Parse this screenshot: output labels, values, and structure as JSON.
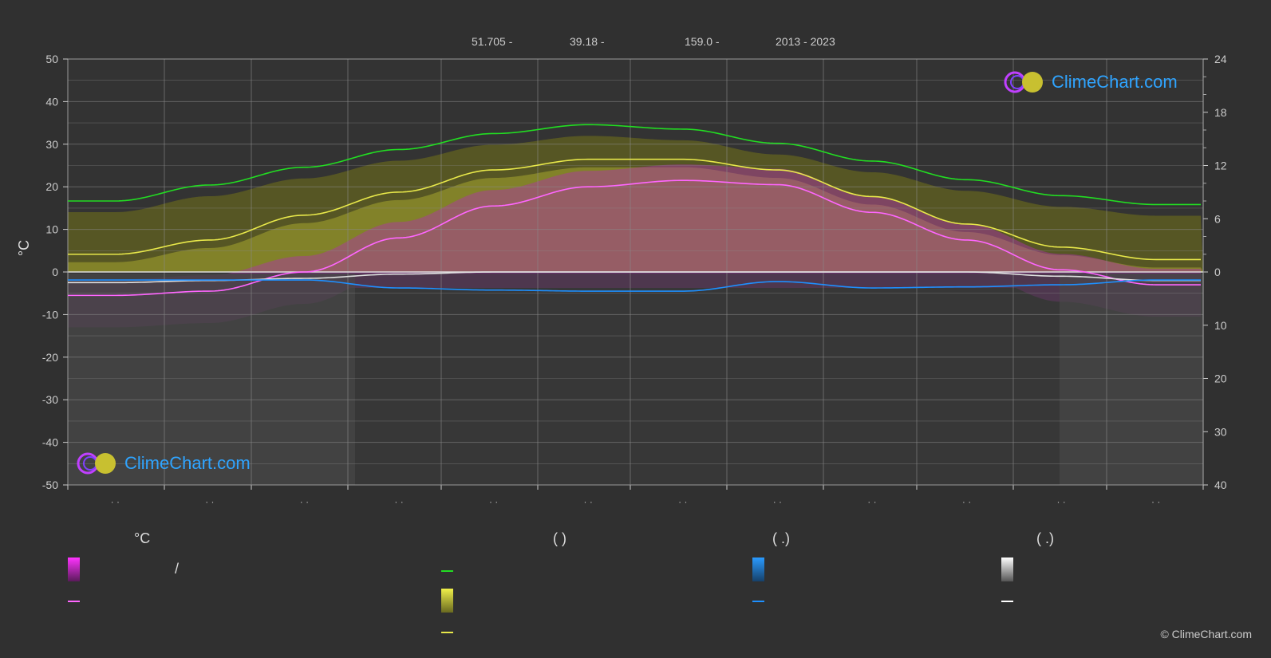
{
  "header": {
    "lat": "51.705 -",
    "lon": "39.18 -",
    "elev": "159.0 -",
    "years": "2013 - 2023"
  },
  "axes": {
    "left_title": "°C",
    "left_ticks": [
      "50",
      "40",
      "30",
      "20",
      "10",
      "0",
      "-10",
      "-20",
      "-30",
      "-40",
      "-50"
    ],
    "right_ticks_top": [
      "24",
      "18",
      "12",
      "6",
      "0"
    ],
    "right_ticks_bottom": [
      "10",
      "20",
      "30",
      "40"
    ]
  },
  "legend": {
    "col1_head": "°C",
    "col2_head": "(           )",
    "col3_head": "(   .)",
    "col4_head": "(   .)",
    "slash": "/"
  },
  "logo_text": "ClimeChart.com",
  "copyright": "© ClimeChart.com",
  "colors": {
    "background": "#303030",
    "daylight": "#22dd22",
    "sunshine": "#e8e84a",
    "max_temp": "#ff66ff",
    "min_temp": "#e0e0e0",
    "precip": "#1e90ff",
    "snow": "#ffffff",
    "sunshine_fill": "#9c9c2a",
    "temp_fill": "#c02ac0"
  },
  "chart_data": {
    "type": "line",
    "title": "",
    "x": [
      "Jan",
      "Feb",
      "Mar",
      "Apr",
      "May",
      "Jun",
      "Jul",
      "Aug",
      "Sep",
      "Oct",
      "Nov",
      "Dec"
    ],
    "ylim": [
      -50,
      50
    ],
    "y2lim_hours": [
      0,
      24
    ],
    "y3lim_mm": [
      0,
      40
    ],
    "series": [
      {
        "name": "daylight_hours",
        "axis": "hours",
        "values": [
          8.0,
          9.8,
          11.8,
          13.8,
          15.6,
          16.6,
          16.1,
          14.5,
          12.5,
          10.4,
          8.6,
          7.6
        ]
      },
      {
        "name": "sunshine_hours",
        "axis": "hours",
        "values": [
          2.0,
          3.6,
          6.4,
          9.0,
          11.5,
          12.7,
          12.7,
          11.5,
          8.5,
          5.4,
          2.8,
          1.4
        ]
      },
      {
        "name": "max_temp",
        "axis": "temp",
        "values": [
          -5.5,
          -4.5,
          0.0,
          8.0,
          15.5,
          20.0,
          21.5,
          20.5,
          14.0,
          7.5,
          0.5,
          -3.0
        ]
      },
      {
        "name": "min_temp",
        "axis": "temp",
        "values": [
          -2.5,
          -2.0,
          -1.5,
          -0.5,
          0.0,
          0.0,
          0.0,
          0.0,
          0.0,
          0.0,
          -1.0,
          -2.0
        ]
      },
      {
        "name": "precip_mm",
        "axis": "mm",
        "values": [
          1.5,
          1.5,
          1.5,
          3.0,
          3.4,
          3.6,
          3.6,
          1.8,
          3.0,
          2.8,
          2.4,
          1.5
        ]
      }
    ]
  }
}
